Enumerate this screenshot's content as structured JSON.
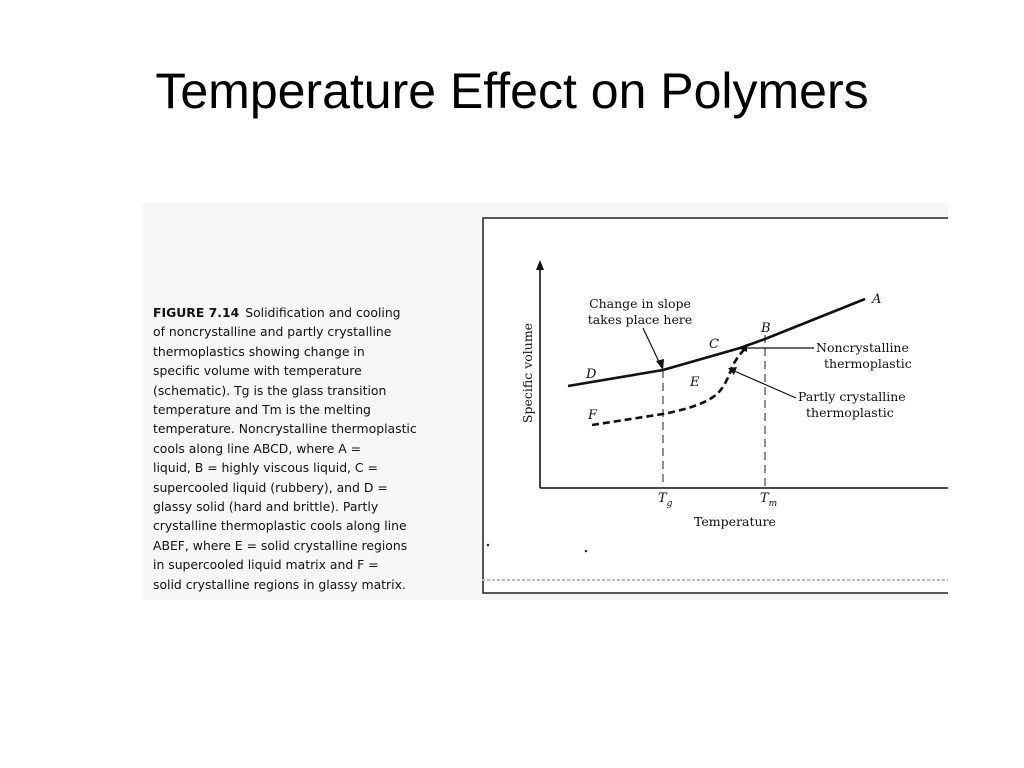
{
  "slide": {
    "title": "Temperature Effect on Polymers"
  },
  "caption": {
    "label": "FIGURE 7.14",
    "text": "Solidification and cooling\nof noncrystalline and partly crystalline\nthermoplastics showing change in\nspecific volume with temperature\n(schematic). Tg is the glass transition\ntemperature and Tm is the melting\ntemperature. Noncrystalline thermoplastic\ncools along line ABCD, where A =\nliquid, B = highly viscous liquid, C =\nsupercooled liquid (rubbery), and D =\nglassy solid (hard and brittle). Partly\ncrystalline thermoplastic cools along line\nABEF, where E = solid crystalline regions\nin supercooled liquid matrix and F =\nsolid crystalline regions in glassy matrix."
  },
  "diagram": {
    "y_axis_label": "Specific volume",
    "x_axis_label": "Temperature",
    "annotation_slope_line1": "Change in slope",
    "annotation_slope_line2": "takes place here",
    "label_noncrystalline_line1": "Noncrystalline",
    "label_noncrystalline_line2": "thermoplastic",
    "label_partly_line1": "Partly crystalline",
    "label_partly_line2": "thermoplastic",
    "point_a": "A",
    "point_b": "B",
    "point_c": "C",
    "point_d": "D",
    "point_e": "E",
    "point_f": "F",
    "tick_tg_base": "T",
    "tick_tg_sub": "g",
    "tick_tm_base": "T",
    "tick_tm_sub": "m"
  }
}
